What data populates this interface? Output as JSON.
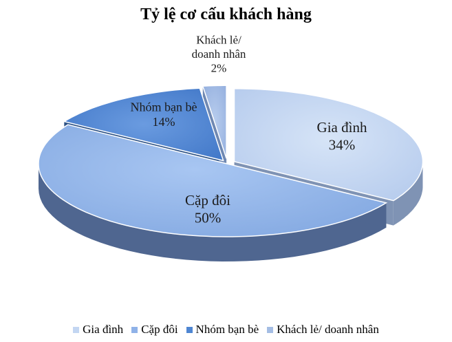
{
  "chart_data": {
    "type": "pie",
    "title": "Tỷ lệ cơ cấu khách hàng",
    "categories": [
      "Gia đình",
      "Cặp đôi",
      "Nhóm bạn bè",
      "Khách lẻ/ doanh nhân"
    ],
    "values": [
      34,
      50,
      14,
      2
    ],
    "data_labels": [
      [
        "Gia đình",
        "34%"
      ],
      [
        "Cặp đôi",
        "50%"
      ],
      [
        "Nhóm bạn bè",
        "14%"
      ],
      [
        "Khách lẻ/",
        "doanh nhân",
        "2%"
      ]
    ],
    "colors": [
      "#c3d6f2",
      "#8fb2e8",
      "#4f86d2",
      "#a4bde4"
    ],
    "side_colors": [
      "#7f93b4",
      "#4f6690",
      "#2e5386",
      "#6f88b2"
    ],
    "legend_position": "bottom",
    "style": "3d-exploded"
  }
}
